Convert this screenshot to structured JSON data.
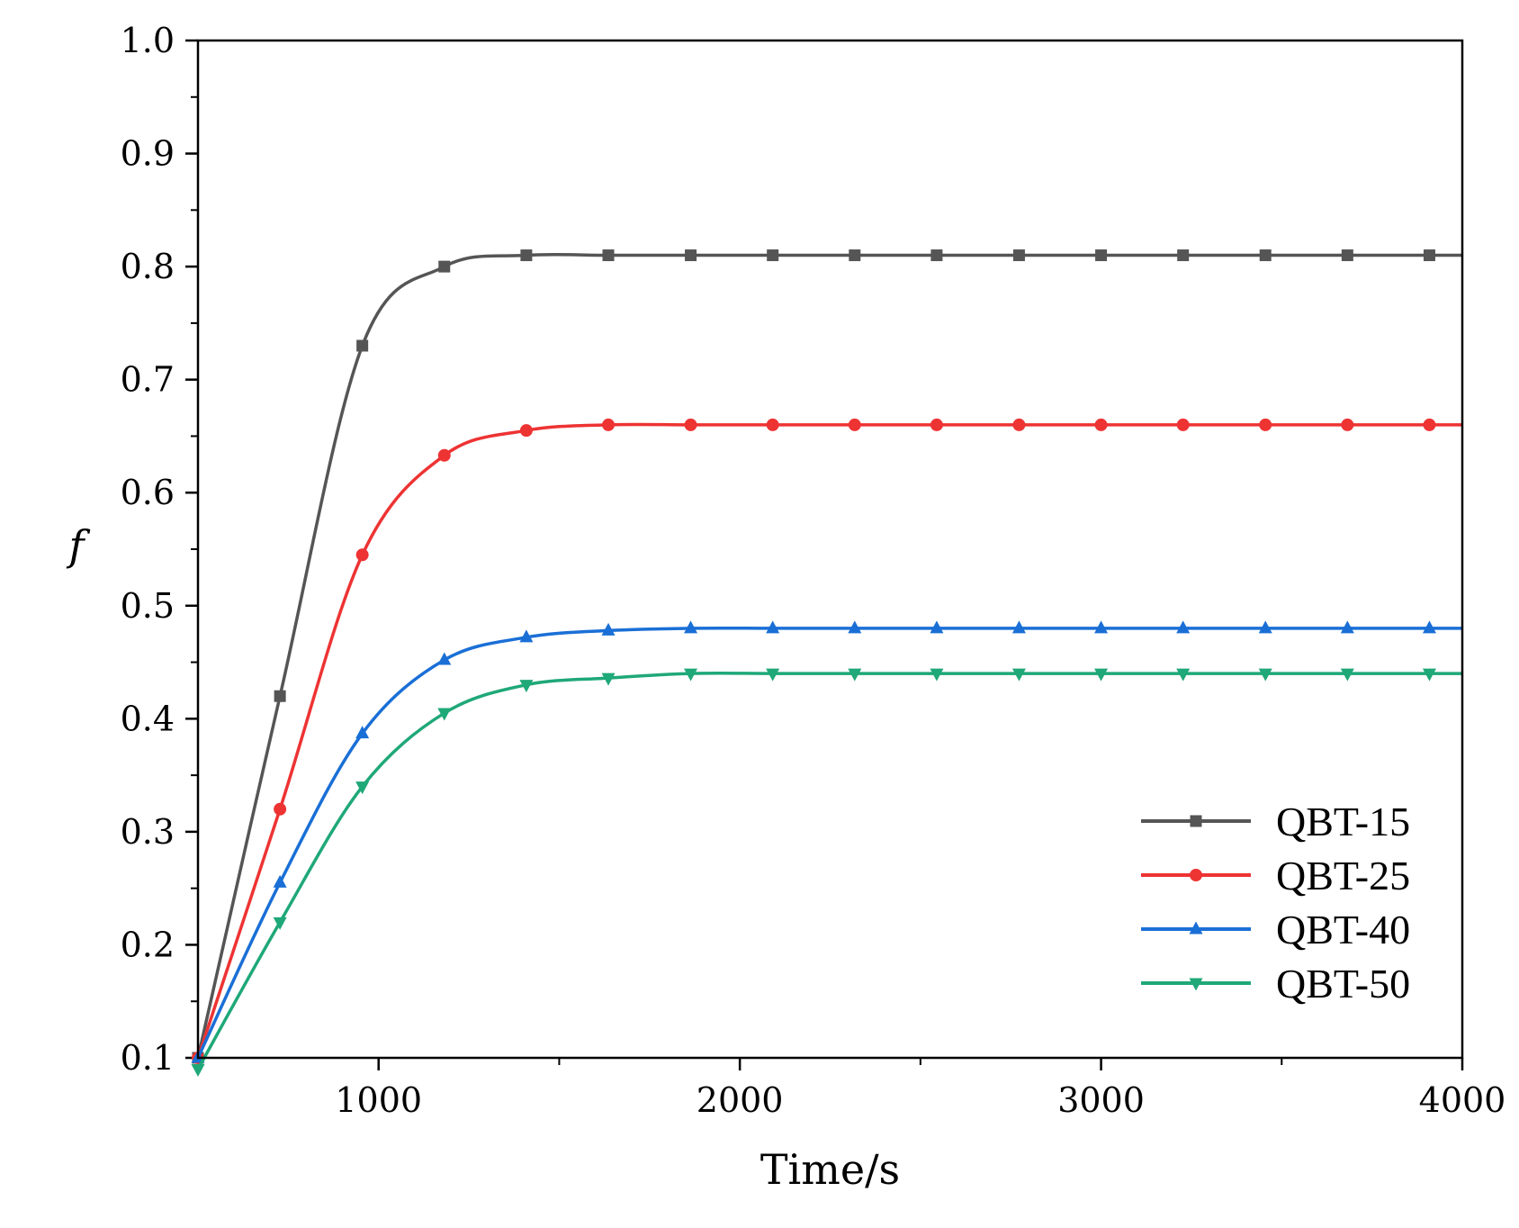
{
  "chart_data": {
    "type": "line",
    "title": "",
    "xlabel": "Time/s",
    "ylabel": "f",
    "xlim": [
      500,
      4000
    ],
    "ylim": [
      0.1,
      1.0
    ],
    "x_ticks": [
      1000,
      2000,
      3000,
      4000
    ],
    "x_tick_labels": [
      "1000",
      "2000",
      "3000",
      "4000"
    ],
    "y_ticks": [
      0.1,
      0.2,
      0.3,
      0.4,
      0.5,
      0.6,
      0.7,
      0.8,
      0.9,
      1.0
    ],
    "y_tick_labels": [
      "0.1",
      "0.2",
      "0.3",
      "0.4",
      "0.5",
      "0.6",
      "0.7",
      "0.8",
      "0.9",
      "1.0"
    ],
    "grid": false,
    "legend_position": "bottom-right",
    "x": [
      500,
      727,
      955,
      1182,
      1409,
      1636,
      1864,
      2091,
      2318,
      2545,
      2773,
      3000,
      3227,
      3455,
      3682,
      3909
    ],
    "series": [
      {
        "name": "QBT-15",
        "color": "#555555",
        "marker": "square",
        "values": [
          0.1,
          0.42,
          0.73,
          0.8,
          0.81,
          0.81,
          0.81,
          0.81,
          0.81,
          0.81,
          0.81,
          0.81,
          0.81,
          0.81,
          0.81,
          0.81
        ]
      },
      {
        "name": "QBT-25",
        "color": "#ee3333",
        "marker": "circle",
        "values": [
          0.1,
          0.32,
          0.545,
          0.633,
          0.655,
          0.66,
          0.66,
          0.66,
          0.66,
          0.66,
          0.66,
          0.66,
          0.66,
          0.66,
          0.66,
          0.66
        ]
      },
      {
        "name": "QBT-40",
        "color": "#1a6fd6",
        "marker": "triangle-up",
        "values": [
          0.1,
          0.255,
          0.387,
          0.452,
          0.472,
          0.478,
          0.48,
          0.48,
          0.48,
          0.48,
          0.48,
          0.48,
          0.48,
          0.48,
          0.48,
          0.48
        ]
      },
      {
        "name": "QBT-50",
        "color": "#1fa878",
        "marker": "triangle-down",
        "values": [
          0.09,
          0.22,
          0.34,
          0.405,
          0.43,
          0.436,
          0.44,
          0.44,
          0.44,
          0.44,
          0.44,
          0.44,
          0.44,
          0.44,
          0.44,
          0.44
        ]
      }
    ]
  }
}
